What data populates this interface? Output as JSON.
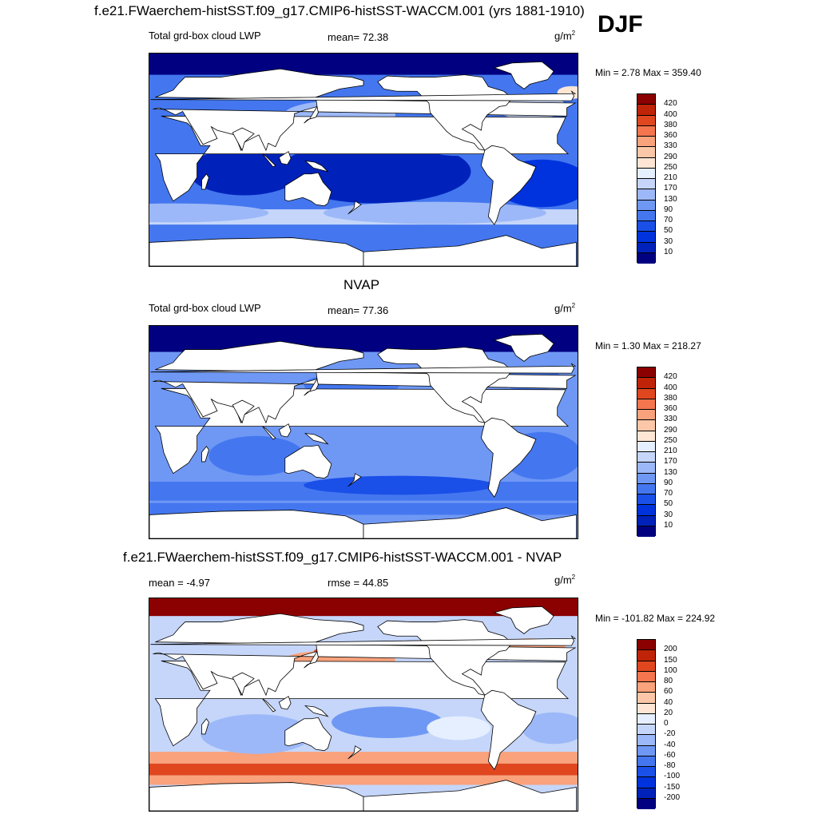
{
  "header": {
    "title": "f.e21.FWaerchem-histSST.f09_g17.CMIP6-histSST-WACCM.001 (yrs 1881-1910)",
    "season": "DJF"
  },
  "panels": [
    {
      "id": "model",
      "title": "",
      "variable_label": "Total grd-box cloud LWP",
      "stat_left": "",
      "stat_mid": "mean=  72.38",
      "units": "g/m",
      "units_sup": "2",
      "minmax": "Min =   2.78 Max = 359.40"
    },
    {
      "id": "obs",
      "title": "NVAP",
      "variable_label": "Total grd-box cloud LWP",
      "stat_left": "",
      "stat_mid": "mean=  77.36",
      "units": "g/m",
      "units_sup": "2",
      "minmax": "Min =   1.30 Max = 218.27"
    },
    {
      "id": "diff",
      "title": "f.e21.FWaerchem-histSST.f09_g17.CMIP6-histSST-WACCM.001 - NVAP",
      "variable_label": "",
      "stat_left": "mean =  -4.97",
      "stat_mid": "rmse =  44.85",
      "units": "g/m",
      "units_sup": "2",
      "minmax": "Min = -101.82 Max = 224.92"
    }
  ],
  "chart_data": [
    {
      "type": "heatmap",
      "panel": "model",
      "projection": "cylindrical equidistant, global, centered on 180",
      "mean": 72.38,
      "min": 2.78,
      "max": 359.4,
      "units": "g/m2",
      "colorbar_levels": [
        10,
        30,
        50,
        70,
        90,
        130,
        170,
        210,
        250,
        290,
        330,
        360,
        380,
        400,
        420
      ],
      "colorbar_colors": [
        "#000080",
        "#0022bb",
        "#0033dd",
        "#1a4fe8",
        "#4477ef",
        "#6f98f5",
        "#9cb8f8",
        "#c5d6fa",
        "#e6efff",
        "#ffe6d4",
        "#fcc7a8",
        "#f9a27c",
        "#f4754e",
        "#e0471f",
        "#c02408",
        "#8b0000"
      ]
    },
    {
      "type": "heatmap",
      "panel": "obs",
      "projection": "cylindrical equidistant, global, centered on 180",
      "mean": 77.36,
      "min": 1.3,
      "max": 218.27,
      "units": "g/m2",
      "colorbar_levels": [
        10,
        30,
        50,
        70,
        90,
        130,
        170,
        210,
        250,
        290,
        330,
        360,
        380,
        400,
        420
      ],
      "colorbar_colors": [
        "#000080",
        "#0022bb",
        "#0033dd",
        "#1a4fe8",
        "#4477ef",
        "#6f98f5",
        "#9cb8f8",
        "#c5d6fa",
        "#e6efff",
        "#ffe6d4",
        "#fcc7a8",
        "#f9a27c",
        "#f4754e",
        "#e0471f",
        "#c02408",
        "#8b0000"
      ]
    },
    {
      "type": "heatmap",
      "panel": "diff",
      "projection": "cylindrical equidistant, global, centered on 180",
      "mean": -4.97,
      "rmse": 44.85,
      "min": -101.82,
      "max": 224.92,
      "units": "g/m2",
      "colorbar_levels": [
        -200,
        -150,
        -100,
        -80,
        -60,
        -40,
        -20,
        0,
        20,
        40,
        60,
        80,
        100,
        150,
        200
      ],
      "colorbar_colors": [
        "#000080",
        "#0022bb",
        "#0033dd",
        "#1a4fe8",
        "#4477ef",
        "#6f98f5",
        "#9cb8f8",
        "#c5d6fa",
        "#e6efff",
        "#ffe6d4",
        "#fcc7a8",
        "#f9a27c",
        "#f4754e",
        "#e0471f",
        "#c02408",
        "#8b0000"
      ]
    }
  ]
}
